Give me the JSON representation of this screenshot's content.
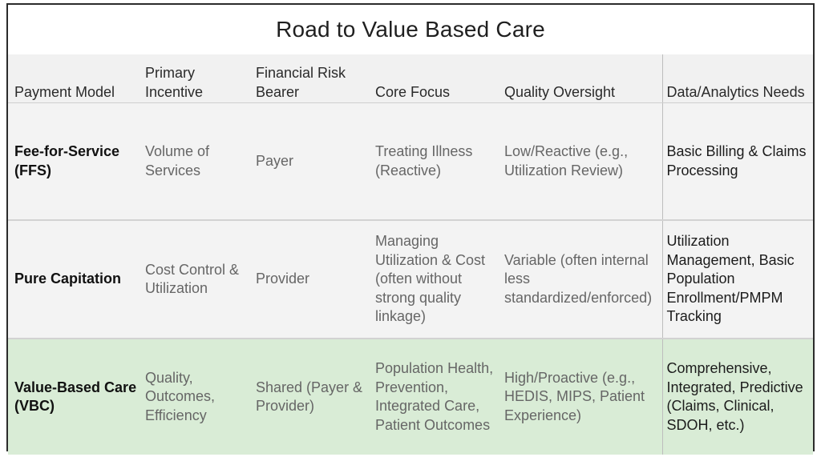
{
  "title": "Road to Value Based Care",
  "columns": [
    "Payment Model",
    "Primary Incentive",
    "Financial Risk Bearer",
    "Core Focus",
    "Quality Oversight",
    "Data/Analytics Needs"
  ],
  "rows": [
    {
      "model": "Fee-for-Service (FFS)",
      "incentive": "Volume of Services",
      "risk_bearer": "Payer",
      "core_focus": "Treating Illness (Reactive)",
      "quality": "Low/Reactive (e.g., Utilization Review)",
      "data_needs": "Basic Billing & Claims Processing"
    },
    {
      "model": "Pure Capitation",
      "incentive": "Cost Control & Utilization",
      "risk_bearer": "Provider",
      "core_focus": "Managing Utilization & Cost (often without strong quality linkage)",
      "quality": "Variable (often internal less standardized/enforced)",
      "data_needs": "Utilization Management, Basic Population Enrollment/PMPM Tracking"
    },
    {
      "model": "Value-Based Care (VBC)",
      "incentive": "Quality, Outcomes, Efficiency",
      "risk_bearer": "Shared (Payer & Provider)",
      "core_focus": "Population Health, Prevention, Integrated Care, Patient Outcomes",
      "quality": "High/Proactive (e.g., HEDIS, MIPS, Patient Experience)",
      "data_needs": "Comprehensive, Integrated, Predictive (Claims, Clinical, SDOH, etc.)"
    }
  ],
  "colors": {
    "header_bg": "#f1f1f1",
    "row_bg": "#f3f3f3",
    "vbc_row_bg": "#d9ecd6"
  }
}
